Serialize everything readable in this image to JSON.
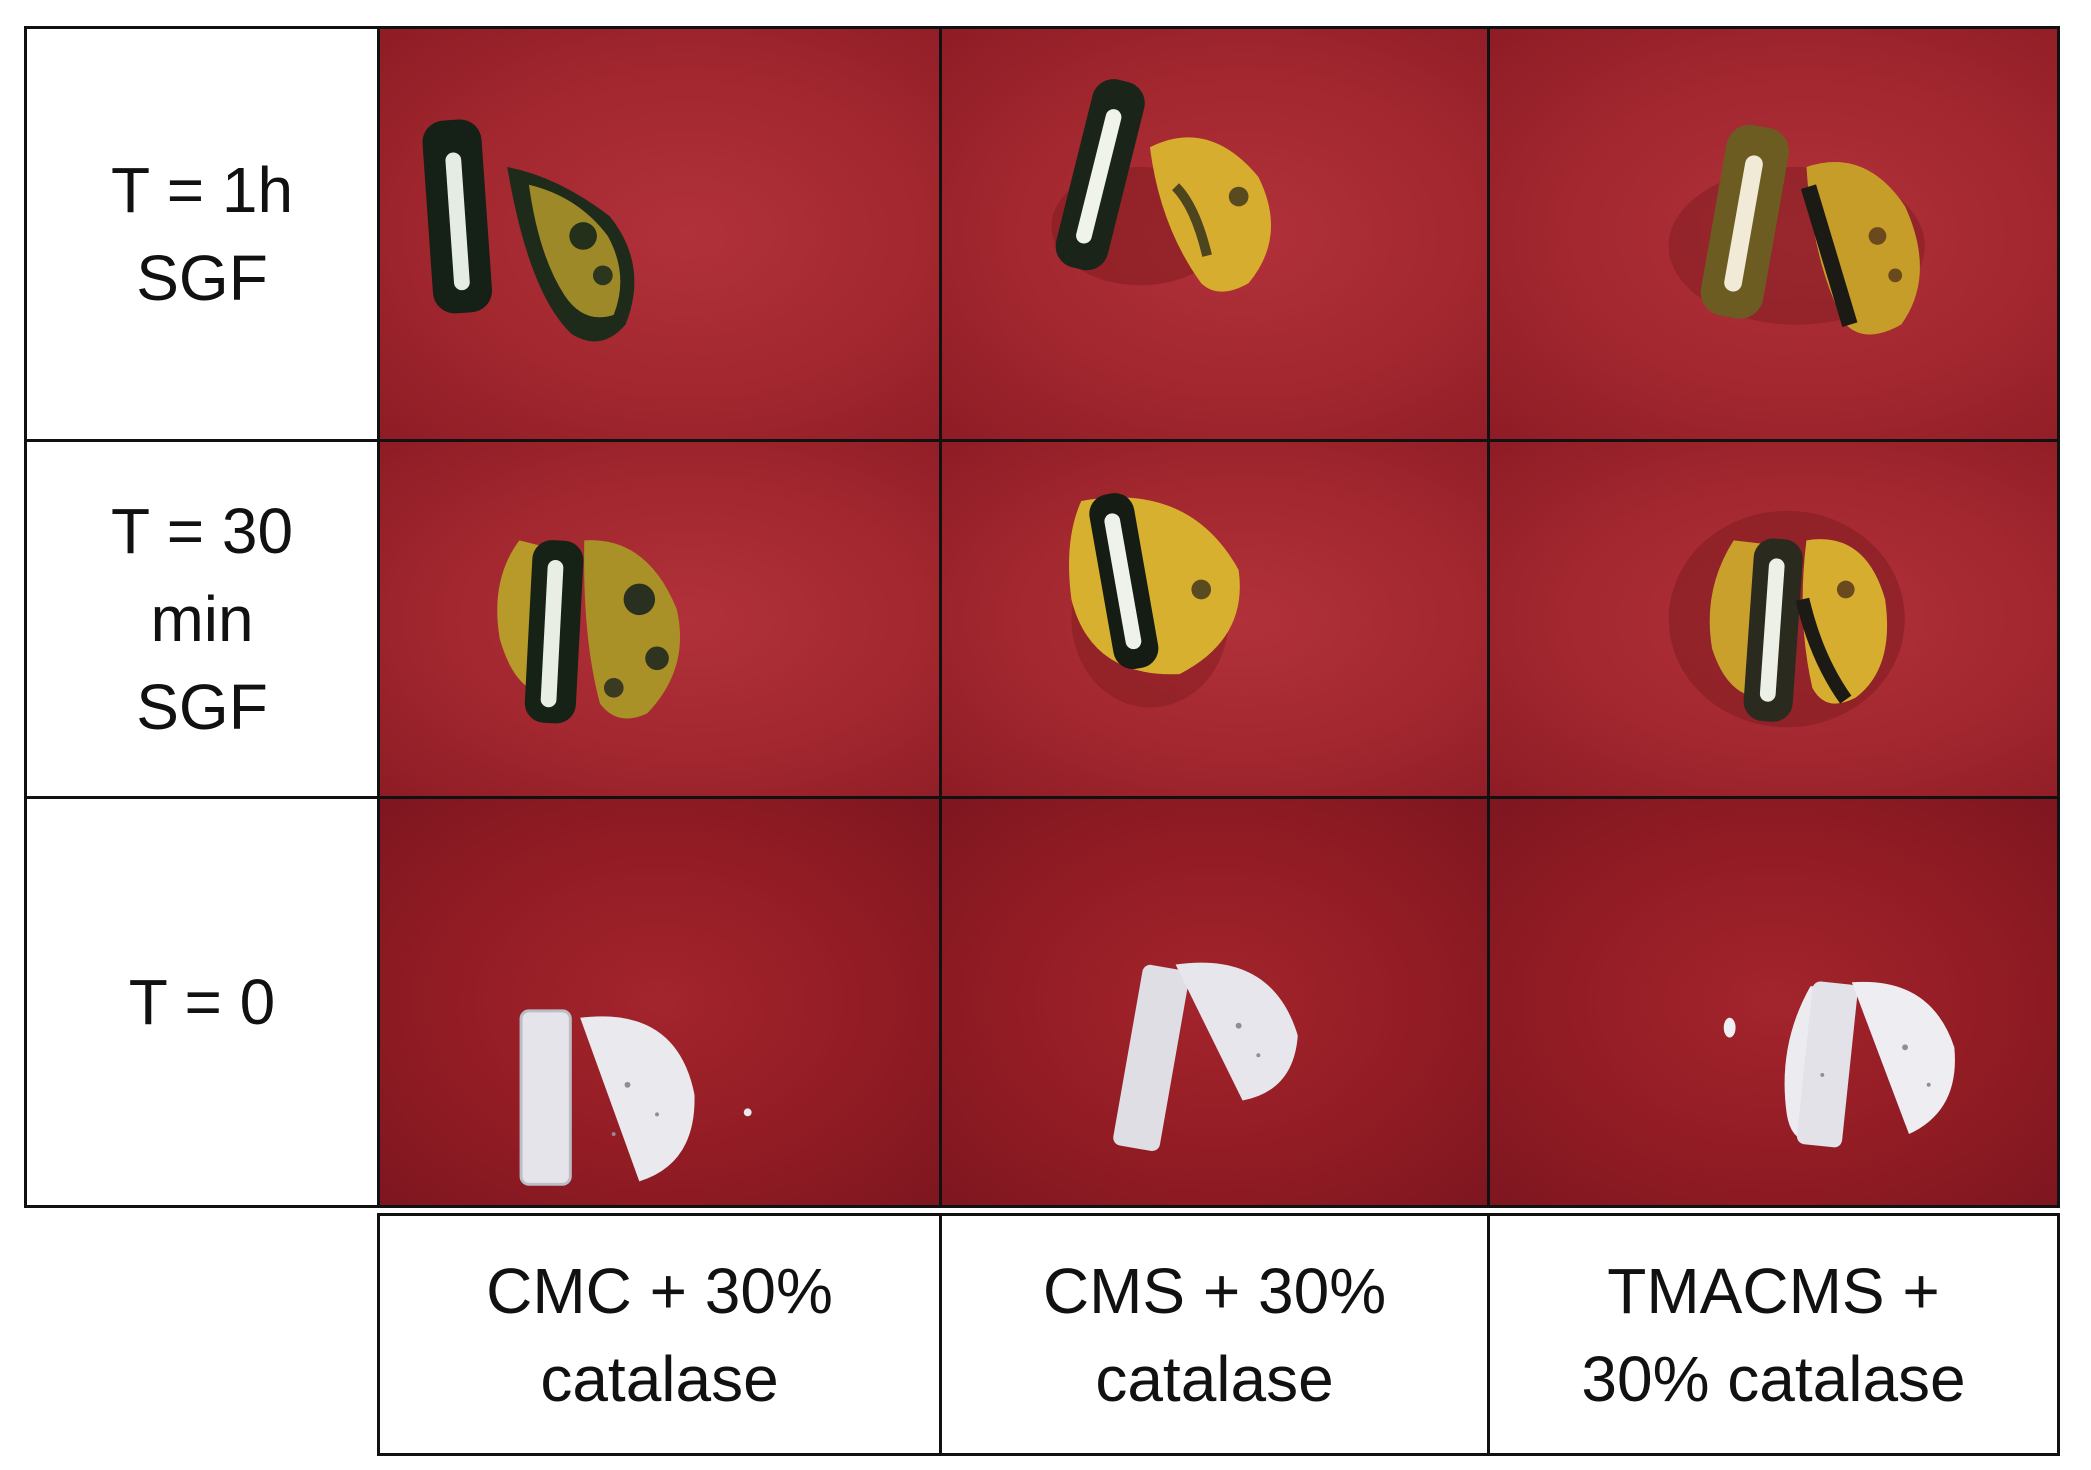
{
  "rows": [
    {
      "lines": [
        "T = 1h",
        "SGF"
      ]
    },
    {
      "lines": [
        "T = 30",
        "min",
        "SGF"
      ]
    },
    {
      "lines": [
        "T = 0"
      ]
    }
  ],
  "columns": [
    {
      "lines": [
        "CMC + 30%",
        "catalase"
      ]
    },
    {
      "lines": [
        "CMS + 30%",
        "catalase"
      ]
    },
    {
      "lines": [
        "TMACMS +",
        "30% catalase"
      ]
    }
  ],
  "colors": {
    "background_red": "#9e2530",
    "tablet_degraded_yellow": "#c9a327",
    "tablet_dark_green": "#1d2a1f",
    "tablet_intact_white": "#e6e6ea"
  }
}
